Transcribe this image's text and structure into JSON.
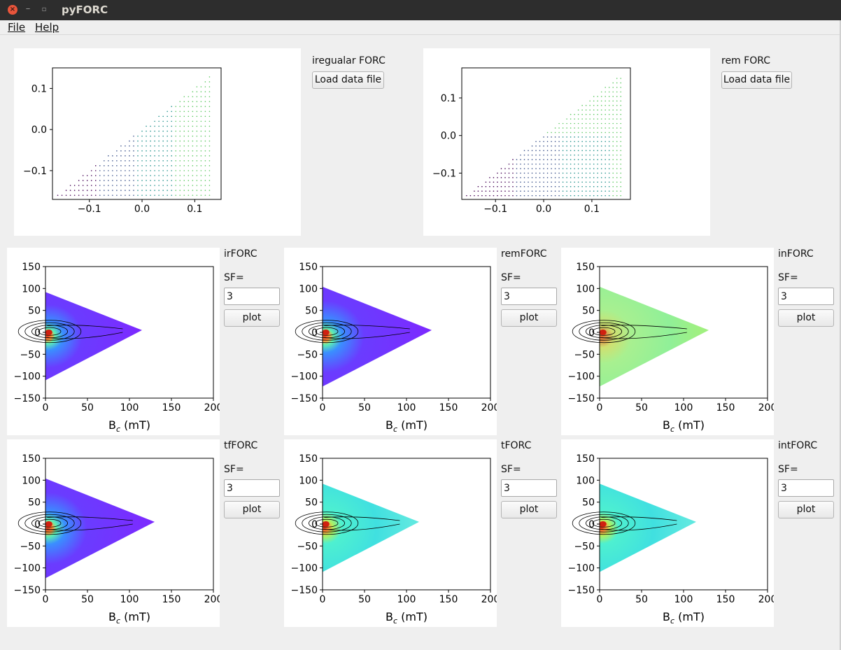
{
  "window": {
    "title": "pyFORC"
  },
  "menu": {
    "file": "File",
    "help": "Help"
  },
  "top_panels": [
    {
      "label": "iregualar FORC",
      "button": "Load data file",
      "xticks": [
        "−0.1",
        "0.0",
        "0.1"
      ],
      "yticks": [
        "0.1",
        "0.0",
        "−0.1"
      ]
    },
    {
      "label": "rem FORC",
      "button": "Load data file",
      "xticks": [
        "−0.1",
        "0.0",
        "0.1"
      ],
      "yticks": [
        "0.1",
        "0.0",
        "−0.1"
      ]
    }
  ],
  "forc_panels": [
    {
      "label": "irFORC",
      "sf_label": "SF=",
      "sf_value": "3",
      "plot_button": "plot"
    },
    {
      "label": "remFORC",
      "sf_label": "SF=",
      "sf_value": "3",
      "plot_button": "plot"
    },
    {
      "label": "inFORC",
      "sf_label": "SF=",
      "sf_value": "3",
      "plot_button": "plot"
    },
    {
      "label": "tfFORC",
      "sf_label": "SF=",
      "sf_value": "3",
      "plot_button": "plot"
    },
    {
      "label": "tFORC",
      "sf_label": "SF=",
      "sf_value": "3",
      "plot_button": "plot"
    },
    {
      "label": "intFORC",
      "sf_label": "SF=",
      "sf_value": "3",
      "plot_button": "plot"
    }
  ],
  "forc_axes": {
    "xticks": [
      "0",
      "50",
      "100",
      "150",
      "200"
    ],
    "yticks": [
      "150",
      "100",
      "50",
      "0",
      "−50",
      "−100",
      "−150"
    ],
    "xlabel_main": "B",
    "xlabel_sub": "c",
    "xlabel_rest": " (mT)"
  },
  "colors": {
    "viridis_low": "#440154",
    "viridis_mid": "#21918c",
    "viridis_high": "#fde725",
    "rainbow_low": "#7b2bff",
    "rainbow_mid": "#4ef0d0",
    "rainbow_high": "#e0301e"
  }
}
